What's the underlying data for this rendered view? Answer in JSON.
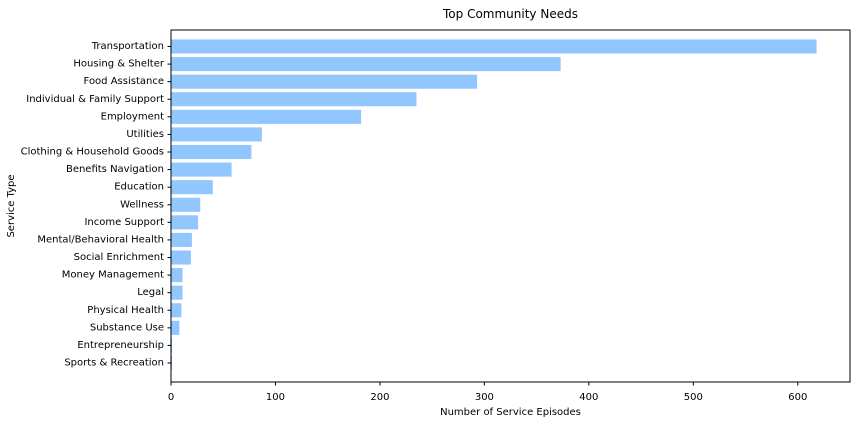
{
  "chart_data": {
    "type": "bar",
    "orientation": "horizontal",
    "title": "Top Community Needs",
    "xlabel": "Number of Service Episodes",
    "ylabel": "Service Type",
    "xlim": [
      0,
      650
    ],
    "xticks": [
      0,
      100,
      200,
      300,
      400,
      500,
      600
    ],
    "grid": false,
    "bar_color": "#91c6ff",
    "categories": [
      "Transportation",
      "Housing & Shelter",
      "Food Assistance",
      "Individual & Family Support",
      "Employment",
      "Utilities",
      "Clothing & Household Goods",
      "Benefits Navigation",
      "Education",
      "Wellness",
      "Income Support",
      "Mental/Behavioral Health",
      "Social Enrichment",
      "Money Management",
      "Legal",
      "Physical Health",
      "Substance Use",
      "Entrepreneurship",
      "Sports & Recreation"
    ],
    "values": [
      618,
      373,
      293,
      235,
      182,
      87,
      77,
      58,
      40,
      28,
      26,
      20,
      19,
      11,
      11,
      10,
      8,
      1,
      1
    ]
  }
}
